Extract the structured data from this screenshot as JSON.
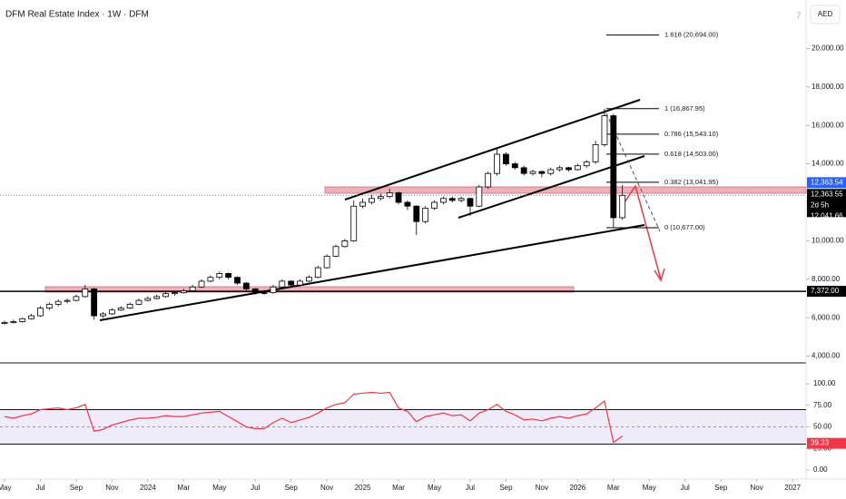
{
  "chart_data": {
    "type": "candlestick",
    "title": "DFM Real Estate Index · 1W · DFM",
    "currency": "AED",
    "corner_note": "7",
    "x": [
      0,
      0.5,
      1,
      1.5,
      2,
      2.5,
      3,
      3.5,
      4,
      4.5,
      5,
      5.5,
      6,
      6.5,
      7,
      7.5,
      8,
      8.5,
      9,
      9.5,
      10,
      10.5,
      11,
      11.5,
      12,
      12.5,
      13,
      13.5,
      14,
      14.5,
      15,
      15.5,
      16,
      16.5,
      17,
      17.5,
      18,
      18.5,
      19,
      19.5,
      20,
      20.5,
      21,
      21.5,
      22,
      22.5,
      23,
      23.5,
      24,
      24.5,
      25,
      25.5,
      26,
      26.5,
      27,
      27.5,
      28,
      28.5,
      29,
      29.5,
      30,
      30.5,
      31,
      31.5,
      32,
      32.5,
      33,
      33.5,
      34,
      34.5
    ],
    "ohlc": [
      [
        5700,
        5850,
        5650,
        5750
      ],
      [
        5750,
        5900,
        5700,
        5800
      ],
      [
        5800,
        6000,
        5750,
        5950
      ],
      [
        5950,
        6200,
        5900,
        6100
      ],
      [
        6100,
        6600,
        6050,
        6500
      ],
      [
        6500,
        6800,
        6400,
        6700
      ],
      [
        6700,
        6950,
        6600,
        6850
      ],
      [
        6850,
        7000,
        6750,
        6900
      ],
      [
        6900,
        7200,
        6850,
        7100
      ],
      [
        7100,
        7700,
        7050,
        7500
      ],
      [
        7500,
        7550,
        5900,
        6100
      ],
      [
        6100,
        6300,
        6000,
        6200
      ],
      [
        6200,
        6500,
        6150,
        6400
      ],
      [
        6400,
        6600,
        6350,
        6500
      ],
      [
        6500,
        6800,
        6450,
        6700
      ],
      [
        6700,
        7000,
        6650,
        6900
      ],
      [
        6900,
        7100,
        6850,
        7000
      ],
      [
        7000,
        7200,
        6950,
        7100
      ],
      [
        7100,
        7350,
        7050,
        7250
      ],
      [
        7250,
        7400,
        7150,
        7300
      ],
      [
        7300,
        7500,
        7250,
        7400
      ],
      [
        7400,
        7700,
        7350,
        7600
      ],
      [
        7600,
        8000,
        7550,
        7900
      ],
      [
        7900,
        8200,
        7850,
        8100
      ],
      [
        8100,
        8400,
        8000,
        8300
      ],
      [
        8300,
        8350,
        8000,
        8100
      ],
      [
        8100,
        8150,
        7700,
        7800
      ],
      [
        7800,
        7850,
        7400,
        7500
      ],
      [
        7500,
        7550,
        7200,
        7300
      ],
      [
        7300,
        7450,
        7200,
        7300
      ],
      [
        7300,
        7700,
        7250,
        7600
      ],
      [
        7600,
        8000,
        7550,
        7900
      ],
      [
        7900,
        7950,
        7600,
        7700
      ],
      [
        7700,
        8000,
        7650,
        7900
      ],
      [
        7900,
        8200,
        7850,
        8100
      ],
      [
        8100,
        8700,
        8050,
        8600
      ],
      [
        8600,
        9300,
        8550,
        9200
      ],
      [
        9200,
        9800,
        9150,
        9700
      ],
      [
        9700,
        10100,
        9650,
        10000
      ],
      [
        10000,
        12100,
        9950,
        11800
      ],
      [
        11800,
        12200,
        11700,
        12000
      ],
      [
        12000,
        12400,
        11900,
        12200
      ],
      [
        12200,
        12450,
        12100,
        12300
      ],
      [
        12300,
        12700,
        12200,
        12500
      ],
      [
        12500,
        12550,
        11900,
        12000
      ],
      [
        12000,
        12100,
        11600,
        11800
      ],
      [
        11800,
        11850,
        10300,
        11000
      ],
      [
        11000,
        11800,
        10900,
        11700
      ],
      [
        11700,
        12100,
        11600,
        12000
      ],
      [
        12000,
        12300,
        11900,
        12200
      ],
      [
        12200,
        12300,
        12000,
        12100
      ],
      [
        12100,
        12300,
        12000,
        12200
      ],
      [
        12200,
        12250,
        11300,
        11800
      ],
      [
        11800,
        12900,
        11750,
        12800
      ],
      [
        12800,
        13600,
        12700,
        13500
      ],
      [
        13500,
        14800,
        13400,
        14500
      ],
      [
        14500,
        14600,
        13900,
        14000
      ],
      [
        14000,
        14100,
        13700,
        13800
      ],
      [
        13800,
        13900,
        13400,
        13500
      ],
      [
        13500,
        13700,
        13400,
        13600
      ],
      [
        13600,
        13650,
        13300,
        13500
      ],
      [
        13500,
        13800,
        13400,
        13700
      ],
      [
        13700,
        13900,
        13600,
        13800
      ],
      [
        13800,
        13850,
        13600,
        13700
      ],
      [
        13700,
        14000,
        13650,
        13900
      ],
      [
        13900,
        14200,
        13800,
        14100
      ],
      [
        14100,
        15200,
        14000,
        15000
      ],
      [
        15000,
        16868,
        14900,
        16500
      ],
      [
        16500,
        16600,
        10677,
        11200
      ],
      [
        11200,
        12900,
        11100,
        12363
      ]
    ],
    "rsi": [
      62,
      60,
      63,
      65,
      70,
      71,
      72,
      70,
      72,
      76,
      45,
      47,
      52,
      55,
      58,
      60,
      60,
      61,
      63,
      62,
      62,
      64,
      66,
      67,
      68,
      62,
      56,
      50,
      48,
      48,
      55,
      60,
      55,
      58,
      61,
      66,
      72,
      76,
      78,
      88,
      89,
      90,
      89,
      90,
      72,
      68,
      56,
      62,
      64,
      66,
      63,
      64,
      57,
      66,
      70,
      76,
      68,
      64,
      58,
      59,
      57,
      60,
      62,
      60,
      63,
      65,
      72,
      80,
      32,
      39.33
    ],
    "rsi_color": "#f23645",
    "rsi_band": [
      30,
      70
    ],
    "rsi_mid": 50,
    "rsi_last_label": "39.33",
    "xlim": [
      0,
      44.5
    ],
    "xticks": [
      {
        "value": 0,
        "label": "May"
      },
      {
        "value": 2,
        "label": "Jul"
      },
      {
        "value": 4,
        "label": "Sep"
      },
      {
        "value": 6,
        "label": "Nov"
      },
      {
        "value": 8,
        "label": "2024"
      },
      {
        "value": 10,
        "label": "Mar"
      },
      {
        "value": 12,
        "label": "May"
      },
      {
        "value": 14,
        "label": "Jul"
      },
      {
        "value": 16,
        "label": "Sep"
      },
      {
        "value": 18,
        "label": "Nov"
      },
      {
        "value": 20,
        "label": "2025"
      },
      {
        "value": 22,
        "label": "Mar"
      },
      {
        "value": 24,
        "label": "May"
      },
      {
        "value": 26,
        "label": "Jul"
      },
      {
        "value": 28,
        "label": "Sep"
      },
      {
        "value": 30,
        "label": "Nov"
      },
      {
        "value": 32,
        "label": "2026"
      },
      {
        "value": 34,
        "label": "Mar"
      },
      {
        "value": 36,
        "label": "May"
      },
      {
        "value": 38,
        "label": "Jul"
      },
      {
        "value": 40,
        "label": "Sep"
      },
      {
        "value": 42,
        "label": "Nov"
      },
      {
        "value": 44,
        "label": "2027"
      }
    ],
    "ylim": [
      3950,
      21500
    ],
    "yticks": [
      {
        "value": 4000,
        "label": "4,000.00"
      },
      {
        "value": 6000,
        "label": "6,000.00"
      },
      {
        "value": 8000,
        "label": "8,000.00"
      },
      {
        "value": 10000,
        "label": "10,000.00"
      },
      {
        "value": 12000,
        "label": "12,000.00"
      },
      {
        "value": 14000,
        "label": "14,000.00"
      },
      {
        "value": 16000,
        "label": "16,000.00"
      },
      {
        "value": 18000,
        "label": "18,000.00"
      },
      {
        "value": 20000,
        "label": "20,000.00"
      }
    ],
    "y2lim": [
      0,
      100
    ],
    "y2ticks": [
      {
        "value": 0,
        "label": "0.00"
      },
      {
        "value": 25,
        "label": "25.00"
      },
      {
        "value": 50,
        "label": "50.00"
      },
      {
        "value": 75,
        "label": "75.00"
      },
      {
        "value": 100,
        "label": "100.00"
      }
    ],
    "fib": [
      {
        "label": "1.618 (20,694.00)",
        "value": 20694
      },
      {
        "label": "1 (16,867.95)",
        "value": 16867.95
      },
      {
        "label": "0.786 (15,543.10)",
        "value": 15543.1
      },
      {
        "label": "0.618 (14,503.00)",
        "value": 14503
      },
      {
        "label": "0.382 (13,041.95)",
        "value": 13041.95
      },
      {
        "label": "0 (10,677.00)",
        "value": 10677
      }
    ],
    "hline": {
      "value": 7372,
      "label": "7,372.00"
    },
    "last_price": {
      "value": 12363.54,
      "label": "12,363.54"
    },
    "price_labels": [
      "12,363.55",
      "2d 5h",
      "12,041.66"
    ]
  }
}
